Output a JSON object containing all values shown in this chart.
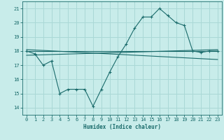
{
  "xlabel": "Humidex (Indice chaleur)",
  "ylabel": "",
  "bg_color": "#c8ecea",
  "grid_color": "#aad8d6",
  "line_color": "#1a6b6b",
  "xlim": [
    -0.5,
    23.5
  ],
  "ylim": [
    13.5,
    21.5
  ],
  "xticks": [
    0,
    1,
    2,
    3,
    4,
    5,
    6,
    7,
    8,
    9,
    10,
    11,
    12,
    13,
    14,
    15,
    16,
    17,
    18,
    19,
    20,
    21,
    22,
    23
  ],
  "yticks": [
    14,
    15,
    16,
    17,
    18,
    19,
    20,
    21
  ],
  "series1_x": [
    0,
    1,
    2,
    3,
    4,
    5,
    6,
    7,
    8,
    9,
    10,
    11,
    12,
    13,
    14,
    15,
    16,
    17,
    18,
    19,
    20,
    21,
    22,
    23
  ],
  "series1_y": [
    18.0,
    17.8,
    17.0,
    17.3,
    15.0,
    15.3,
    15.3,
    15.3,
    14.1,
    15.3,
    16.5,
    17.6,
    18.5,
    19.6,
    20.4,
    20.4,
    21.0,
    20.5,
    20.0,
    19.8,
    18.0,
    17.9,
    18.0,
    18.0
  ],
  "line1_x": [
    0,
    23
  ],
  "line1_y": [
    18.0,
    18.0
  ],
  "line2_x": [
    0,
    23
  ],
  "line2_y": [
    18.1,
    17.4
  ],
  "line3_x": [
    0,
    23
  ],
  "line3_y": [
    17.7,
    18.1
  ]
}
